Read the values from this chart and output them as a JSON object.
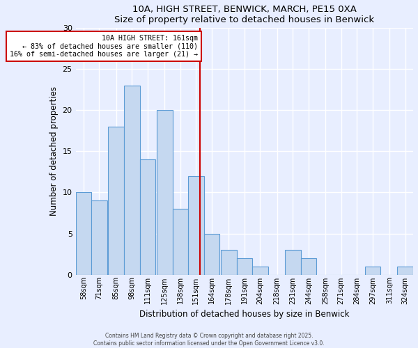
{
  "title": "10A, HIGH STREET, BENWICK, MARCH, PE15 0XA",
  "subtitle": "Size of property relative to detached houses in Benwick",
  "xlabel": "Distribution of detached houses by size in Benwick",
  "ylabel": "Number of detached properties",
  "bin_labels": [
    "58sqm",
    "71sqm",
    "85sqm",
    "98sqm",
    "111sqm",
    "125sqm",
    "138sqm",
    "151sqm",
    "164sqm",
    "178sqm",
    "191sqm",
    "204sqm",
    "218sqm",
    "231sqm",
    "244sqm",
    "258sqm",
    "271sqm",
    "284sqm",
    "297sqm",
    "311sqm",
    "324sqm"
  ],
  "bin_edges": [
    58,
    71,
    85,
    98,
    111,
    125,
    138,
    151,
    164,
    178,
    191,
    204,
    218,
    231,
    244,
    258,
    271,
    284,
    297,
    311,
    324
  ],
  "bin_width": 13,
  "counts": [
    10,
    9,
    18,
    23,
    14,
    20,
    8,
    12,
    5,
    3,
    2,
    1,
    0,
    3,
    2,
    0,
    0,
    0,
    1,
    0,
    1
  ],
  "bar_color": "#c5d8f0",
  "bar_edge_color": "#5b9bd5",
  "property_size": 161,
  "vline_color": "#cc0000",
  "annotation_text": "10A HIGH STREET: 161sqm\n← 83% of detached houses are smaller (110)\n16% of semi-detached houses are larger (21) →",
  "annotation_box_color": "#ffffff",
  "annotation_box_edge_color": "#cc0000",
  "ylim": [
    0,
    30
  ],
  "yticks": [
    0,
    5,
    10,
    15,
    20,
    25,
    30
  ],
  "bg_color": "#e8eeff",
  "grid_color": "#ffffff",
  "footer_line1": "Contains HM Land Registry data © Crown copyright and database right 2025.",
  "footer_line2": "Contains public sector information licensed under the Open Government Licence v3.0."
}
